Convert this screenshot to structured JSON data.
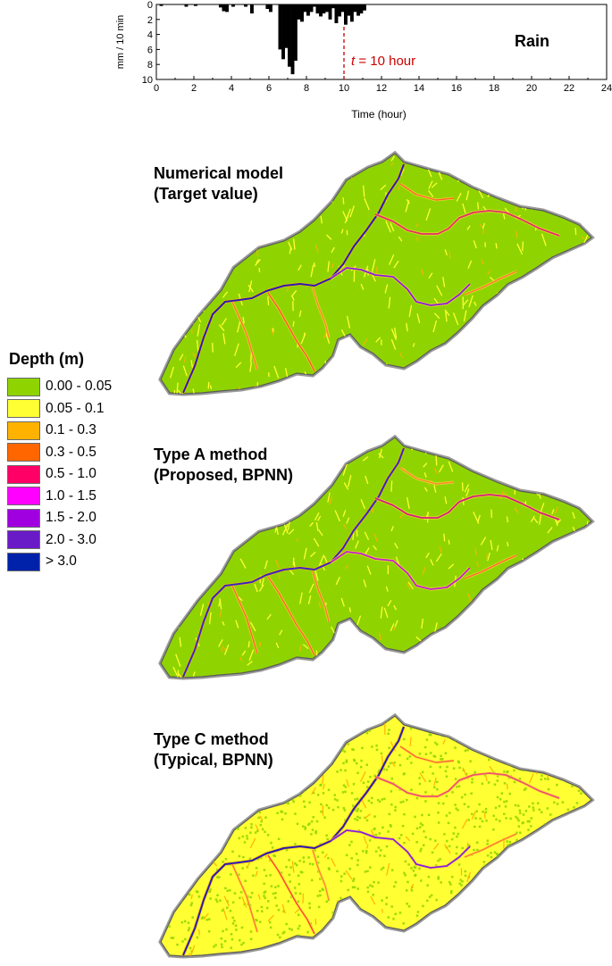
{
  "chart_data": {
    "type": "bar",
    "title": "Rain",
    "xlabel": "Time (hour)",
    "ylabel": "mm / 10 min",
    "xlim": [
      0,
      24
    ],
    "ylim": [
      0,
      10
    ],
    "y_inverted": true,
    "x_ticks": [
      0,
      2,
      4,
      6,
      8,
      10,
      12,
      14,
      16,
      18,
      20,
      22,
      24
    ],
    "y_ticks": [
      0,
      2,
      4,
      6,
      8,
      10
    ],
    "bar_width_hours": 0.1667,
    "annotation": {
      "prefix": "t",
      "text": " = 10 hour",
      "x": 10,
      "color": "#cc0000"
    },
    "x": [
      0.17,
      1.5,
      2.0,
      3.33,
      3.5,
      3.67,
      4.0,
      4.67,
      5.0,
      5.83,
      6.0,
      6.5,
      6.67,
      6.83,
      7.0,
      7.17,
      7.33,
      7.5,
      7.67,
      7.83,
      8.0,
      8.17,
      8.33,
      8.5,
      8.67,
      8.83,
      9.0,
      9.17,
      9.33,
      9.5,
      9.67,
      9.83,
      10.0,
      10.17,
      10.33,
      10.5,
      10.67,
      10.83,
      11.0
    ],
    "values": [
      0.2,
      0.3,
      0.2,
      0.4,
      0.9,
      1.0,
      0.3,
      0.3,
      1.2,
      0.6,
      1.0,
      6.0,
      7.3,
      5.8,
      8.3,
      9.3,
      7.5,
      2.0,
      2.3,
      1.0,
      1.5,
      1.0,
      0.3,
      1.2,
      1.6,
      1.2,
      1.0,
      2.0,
      0.5,
      2.5,
      1.6,
      1.0,
      2.7,
      1.5,
      2.3,
      1.0,
      1.5,
      1.2,
      0.8
    ]
  },
  "legend": {
    "title": "Depth (m)",
    "items": [
      {
        "label": "0.00 - 0.05",
        "color": "#8fd400"
      },
      {
        "label": "0.05 - 0.1",
        "color": "#ffff33"
      },
      {
        "label": "0.1 - 0.3",
        "color": "#ffb300"
      },
      {
        "label": "0.3 - 0.5",
        "color": "#ff6600"
      },
      {
        "label": "0.5 - 1.0",
        "color": "#ff0066"
      },
      {
        "label": "1.0 - 1.5",
        "color": "#ff00ff"
      },
      {
        "label": "1.5 - 2.0",
        "color": "#a000e0"
      },
      {
        "label": "2.0 - 3.0",
        "color": "#6a1bc8"
      },
      {
        "label": "> 3.0",
        "color": "#0022aa"
      }
    ]
  },
  "maps": [
    {
      "line1": "Numerical model",
      "line2": "(Target value)",
      "base_color": "#8fd400",
      "yellow_density": "low"
    },
    {
      "line1": "Type A method",
      "line2": "(Proposed, BPNN)",
      "base_color": "#8fd400",
      "yellow_density": "low"
    },
    {
      "line1": "Type C method",
      "line2": "(Typical, BPNN)",
      "base_color": "#ffff33",
      "yellow_density": "high"
    }
  ]
}
